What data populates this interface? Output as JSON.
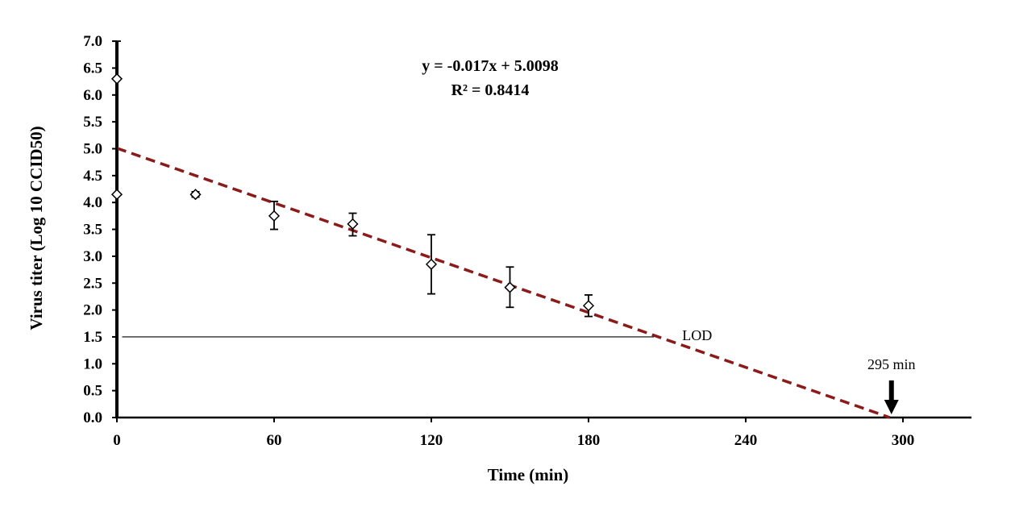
{
  "chart_data": {
    "type": "scatter",
    "title": "",
    "xlabel": "Time (min)",
    "ylabel": "Virus titer (Log 10 CCID50)",
    "xlim": [
      0,
      330
    ],
    "ylim": [
      0,
      7
    ],
    "x_ticks": [
      "0",
      "60",
      "120",
      "180",
      "240",
      "300"
    ],
    "y_ticks": [
      "0.0",
      "0.5",
      "1.0",
      "1.5",
      "2.0",
      "2.5",
      "3.0",
      "3.5",
      "4.0",
      "4.5",
      "5.0",
      "5.5",
      "6.0",
      "6.5",
      "7.0"
    ],
    "grid": false,
    "series": [
      {
        "x": [
          0,
          0,
          30,
          60,
          90,
          120,
          150,
          180
        ],
        "y": [
          6.3,
          4.15,
          4.15,
          3.75,
          3.6,
          2.85,
          2.42,
          2.08
        ],
        "error_low": [
          2.15,
          0.0,
          0.05,
          0.25,
          0.22,
          0.55,
          0.37,
          0.2
        ],
        "error_high": [
          0.7,
          0.0,
          0.05,
          0.27,
          0.2,
          0.55,
          0.38,
          0.2
        ]
      }
    ],
    "trendline": {
      "slope": -0.017,
      "intercept": 5.0098,
      "x_range": [
        0,
        295
      ],
      "color": "#8b1a1a",
      "style": "dashed"
    },
    "equation_label": "y = -0.017x + 5.0098",
    "r2_label": "R² = 0.8414",
    "lod": {
      "label": "LOD",
      "y": 1.5,
      "x_range": [
        2,
        205
      ]
    },
    "arrow_annotation": {
      "label": "295 min",
      "x": 295
    }
  }
}
